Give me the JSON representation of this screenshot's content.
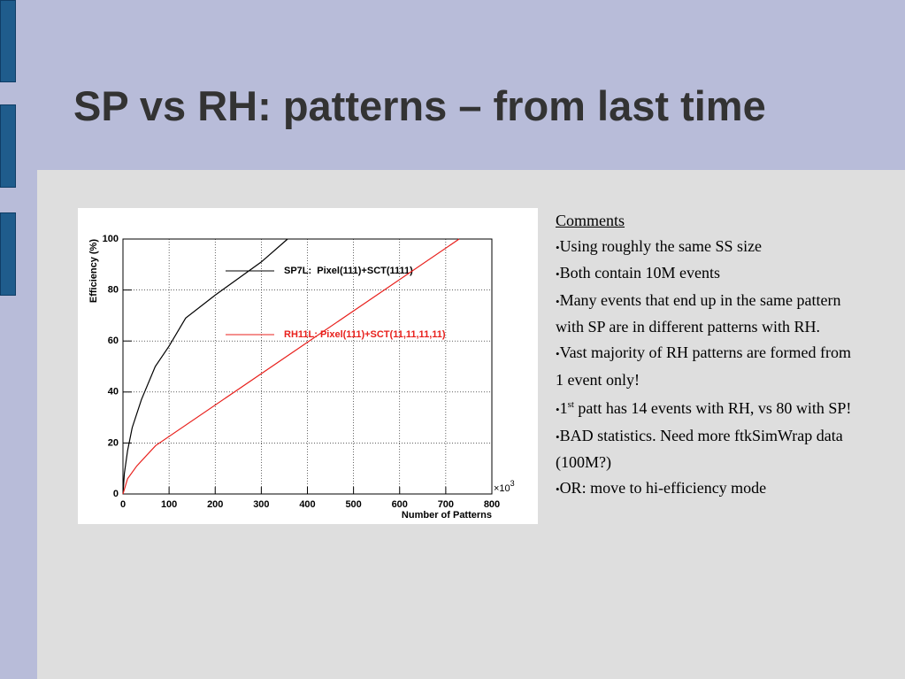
{
  "title": "SP vs RH: patterns – from last time",
  "comments": {
    "heading": "Comments",
    "items": [
      {
        "text": "Using roughly the same SS size"
      },
      {
        "text": "Both contain 10M events"
      },
      {
        "text": "Many events that end up in the same pattern with SP are in different patterns with RH."
      },
      {
        "text": "Vast majority of RH patterns are formed from 1 event only!"
      },
      {
        "text": "1",
        "sup": "st",
        "rest": " patt has 14 events with RH, vs 80 with SP!"
      },
      {
        "text": "BAD statistics. Need more ftkSimWrap data (100M?)"
      },
      {
        "text": "OR: move to hi-efficiency mode"
      }
    ]
  },
  "chart_data": {
    "type": "line",
    "xlabel": "Number of Patterns",
    "ylabel": "Efficiency (%)",
    "x_multiplier": {
      "base": "×10",
      "exponent": "3"
    },
    "xlim": [
      0,
      800
    ],
    "ylim": [
      0,
      100
    ],
    "xticks": [
      0,
      100,
      200,
      300,
      400,
      500,
      600,
      700,
      800
    ],
    "yticks": [
      0,
      20,
      40,
      60,
      80,
      100
    ],
    "grid": true,
    "series": [
      {
        "name": "SP7L:  Pixel(111)+SCT(1111)",
        "color": "#000000",
        "x": [
          0,
          3,
          10,
          20,
          40,
          70,
          100,
          136,
          200,
          300,
          357
        ],
        "values": [
          0,
          8,
          17,
          26,
          37,
          50,
          58,
          69,
          78,
          91,
          100
        ]
      },
      {
        "name": "RH11L: Pixel(111)+SCT(11,11,11,11)",
        "color": "#e8201c",
        "x": [
          0,
          10,
          30,
          71,
          729
        ],
        "values": [
          0,
          6,
          11,
          19,
          100
        ]
      }
    ]
  }
}
